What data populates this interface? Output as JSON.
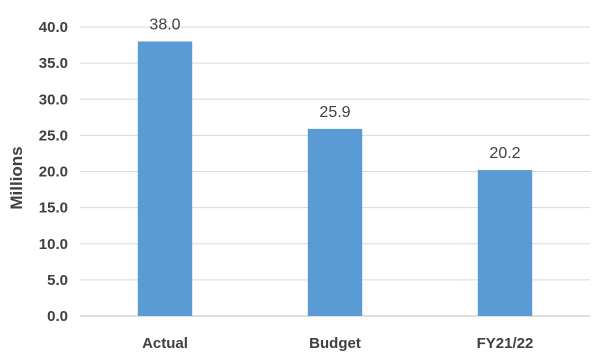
{
  "chart_data": {
    "type": "bar",
    "categories": [
      "Actual",
      "Budget",
      "FY21/22"
    ],
    "values": [
      38.0,
      25.9,
      20.2
    ],
    "data_labels": [
      "38.0",
      "25.9",
      "20.2"
    ],
    "title": "",
    "xlabel": "",
    "ylabel": "Millions",
    "ylim": [
      0,
      40
    ],
    "yticks": [
      "0.0",
      "5.0",
      "10.0",
      "15.0",
      "20.0",
      "25.0",
      "30.0",
      "35.0",
      "40.0"
    ],
    "ytick_values": [
      0,
      5,
      10,
      15,
      20,
      25,
      30,
      35,
      40
    ],
    "grid": true,
    "legend": "none",
    "bar_color": "#5b9bd5"
  }
}
